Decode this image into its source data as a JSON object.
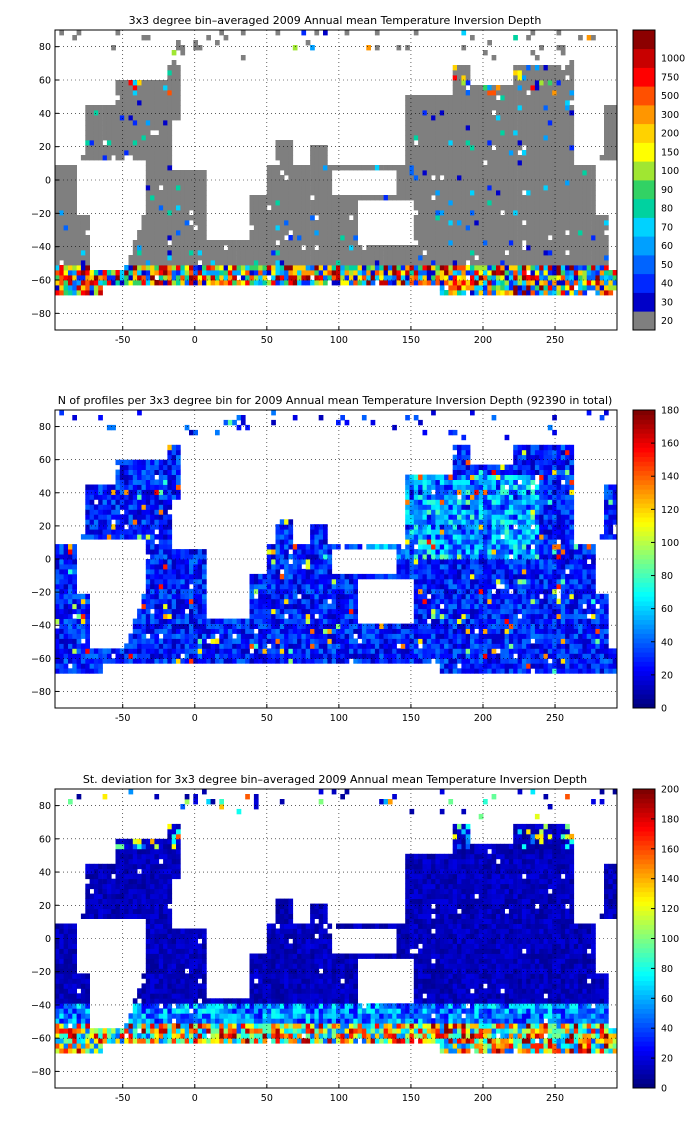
{
  "colors": {
    "land": "#ffffff",
    "no_data_grey": "#808080",
    "frame": "#000000",
    "grid": "#000000"
  },
  "chart_data": [
    {
      "type": "heatmap",
      "title": "3x3 degree bin–averaged 2009 Annual mean Temperature Inversion Depth",
      "x_ticks": [
        "-50",
        "0",
        "50",
        "100",
        "150",
        "200",
        "250"
      ],
      "y_ticks": [
        "80",
        "60",
        "40",
        "20",
        "0",
        "−20",
        "−40",
        "−60",
        "−80"
      ],
      "xlim": [
        -97,
        293
      ],
      "ylim": [
        -90,
        90
      ],
      "grid": true,
      "colorbar": {
        "type": "discrete",
        "labels": [
          "20",
          "30",
          "40",
          "50",
          "60",
          "70",
          "80",
          "90",
          "100",
          "150",
          "200",
          "300",
          "500",
          "750",
          "1000"
        ],
        "colors": [
          "#7f7f7f",
          "#0000c8",
          "#0028ff",
          "#0064ff",
          "#00a0ff",
          "#00d2ff",
          "#00d2a0",
          "#32d264",
          "#a0e632",
          "#ffff00",
          "#ffd200",
          "#ff9600",
          "#ff5000",
          "#ff0000",
          "#c80000",
          "#8c0000"
        ]
      },
      "ocean_value": "gray (≤20) except polar/sub-polar bands"
    },
    {
      "type": "heatmap",
      "title": "N of profiles per 3x3 degree bin for 2009 Annual mean Temperature Inversion Depth  (92390 in total)",
      "x_ticks": [
        "-50",
        "0",
        "50",
        "100",
        "150",
        "200",
        "250"
      ],
      "y_ticks": [
        "80",
        "60",
        "40",
        "20",
        "0",
        "−20",
        "−40",
        "−60",
        "−80"
      ],
      "xlim": [
        -97,
        293
      ],
      "ylim": [
        -90,
        90
      ],
      "grid": true,
      "total_profiles": 92390,
      "colorbar": {
        "type": "continuous",
        "labels": [
          "0",
          "20",
          "40",
          "60",
          "80",
          "100",
          "120",
          "140",
          "160",
          "180"
        ],
        "range": [
          0,
          180
        ]
      }
    },
    {
      "type": "heatmap",
      "title": "St. deviation for 3x3 degree bin–averaged 2009 Annual mean Temperature Inversion Depth",
      "x_ticks": [
        "-50",
        "0",
        "50",
        "100",
        "150",
        "200",
        "250"
      ],
      "y_ticks": [
        "80",
        "60",
        "40",
        "20",
        "0",
        "−20",
        "−40",
        "−60",
        "−80"
      ],
      "xlim": [
        -97,
        293
      ],
      "ylim": [
        -90,
        90
      ],
      "grid": true,
      "colorbar": {
        "type": "continuous",
        "labels": [
          "0",
          "20",
          "40",
          "60",
          "80",
          "100",
          "120",
          "140",
          "160",
          "180",
          "200"
        ],
        "range": [
          0,
          200
        ]
      }
    }
  ]
}
